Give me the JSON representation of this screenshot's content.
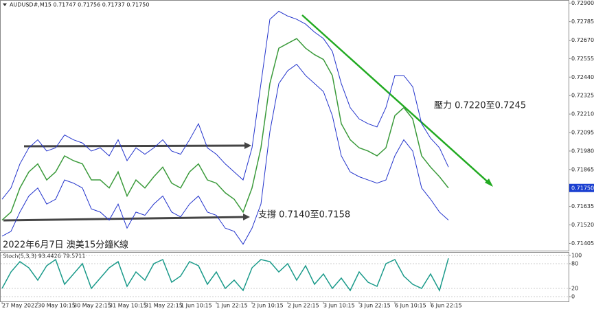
{
  "chart_data": [
    {
      "type": "line",
      "title": "AUDUSD#,M15  0.71747 0.71756 0.71737 0.71750",
      "annotations": [
        "壓力 0.7220至0.7245",
        "支撐 0.7140至0.7158",
        "2022年6月7日 澳美15分鐘K線"
      ],
      "current_price": {
        "value": 0.7175,
        "label": "0.71750"
      },
      "ylim": [
        0.7136,
        0.7292
      ],
      "yticks": [
        {
          "value": 0.729,
          "label": "0.72900"
        },
        {
          "value": 0.72785,
          "label": "0.72785"
        },
        {
          "value": 0.7267,
          "label": "0.72670"
        },
        {
          "value": 0.72555,
          "label": "0.72555"
        },
        {
          "value": 0.7244,
          "label": "0.72440"
        },
        {
          "value": 0.72325,
          "label": "0.72325"
        },
        {
          "value": 0.7221,
          "label": "0.72210"
        },
        {
          "value": 0.72095,
          "label": "0.72095"
        },
        {
          "value": 0.7198,
          "label": "0.71980"
        },
        {
          "value": 0.71865,
          "label": "0.71865"
        },
        {
          "value": 0.71635,
          "label": "0.71635"
        },
        {
          "value": 0.7152,
          "label": "0.71520"
        },
        {
          "value": 0.71405,
          "label": "0.71405"
        }
      ],
      "series": [
        {
          "color": "#3a9a3a",
          "values": [
            0.7155,
            0.716,
            0.7175,
            0.7185,
            0.719,
            0.718,
            0.7185,
            0.7195,
            0.7192,
            0.719,
            0.718,
            0.718,
            0.7175,
            0.7185,
            0.717,
            0.718,
            0.7175,
            0.7182,
            0.7188,
            0.7178,
            0.7175,
            0.7185,
            0.719,
            0.718,
            0.7178,
            0.7172,
            0.7168,
            0.716,
            0.7175,
            0.72,
            0.724,
            0.7262,
            0.7265,
            0.7268,
            0.7262,
            0.7258,
            0.7255,
            0.7245,
            0.7215,
            0.7205,
            0.72,
            0.7198,
            0.7195,
            0.72,
            0.722,
            0.7225,
            0.7218,
            0.7195,
            0.7188,
            0.7182,
            0.7175
          ]
        },
        {
          "color": "#2233cc",
          "values": [
            0.7168,
            0.7175,
            0.719,
            0.72,
            0.7205,
            0.7198,
            0.72,
            0.7208,
            0.7205,
            0.7203,
            0.7198,
            0.72,
            0.7195,
            0.7205,
            0.7192,
            0.72,
            0.7196,
            0.72,
            0.7205,
            0.7198,
            0.7196,
            0.7205,
            0.7215,
            0.72,
            0.7196,
            0.719,
            0.7185,
            0.718,
            0.72,
            0.724,
            0.728,
            0.7285,
            0.7282,
            0.728,
            0.7277,
            0.7272,
            0.7268,
            0.726,
            0.724,
            0.7225,
            0.7218,
            0.7215,
            0.7213,
            0.7225,
            0.7245,
            0.7245,
            0.7238,
            0.7215,
            0.7206,
            0.72,
            0.7188
          ]
        },
        {
          "color": "#2233cc",
          "values": [
            0.7145,
            0.7148,
            0.716,
            0.717,
            0.7175,
            0.7165,
            0.7168,
            0.718,
            0.7178,
            0.7175,
            0.7162,
            0.716,
            0.7155,
            0.7165,
            0.715,
            0.716,
            0.7158,
            0.7165,
            0.717,
            0.716,
            0.7157,
            0.7165,
            0.717,
            0.716,
            0.7158,
            0.715,
            0.7148,
            0.714,
            0.715,
            0.7165,
            0.721,
            0.724,
            0.7248,
            0.7252,
            0.7245,
            0.724,
            0.7235,
            0.722,
            0.7195,
            0.7185,
            0.7182,
            0.718,
            0.7178,
            0.718,
            0.7195,
            0.7205,
            0.7198,
            0.7175,
            0.7168,
            0.716,
            0.7155
          ]
        }
      ]
    },
    {
      "type": "line",
      "title": "Stoch(5,3,3) 93.4426 79.5711",
      "categories": [
        "27 May 2022",
        null,
        null,
        null,
        "30 May 10:15",
        null,
        null,
        null,
        "30 May 22:15",
        null,
        null,
        null,
        "31 May 10:15",
        null,
        null,
        null,
        "31 May 22:15",
        null,
        null,
        null,
        "1 Jun 10:15",
        null,
        null,
        null,
        "1 Jun 22:15",
        null,
        null,
        null,
        "2 Jun 10:15",
        null,
        null,
        null,
        "2 Jun 22:15",
        null,
        null,
        null,
        "3 Jun 10:15",
        null,
        null,
        null,
        "3 Jun 22:15",
        null,
        null,
        null,
        "6 Jun 10:15",
        null,
        null,
        null,
        "6 Jun 22:15",
        null,
        null
      ],
      "ylim": [
        0,
        100
      ],
      "yticks": [
        100,
        80,
        20,
        0
      ],
      "series": [
        {
          "color": "#1a9a8a",
          "values": [
            20,
            60,
            85,
            70,
            40,
            75,
            90,
            30,
            55,
            80,
            20,
            45,
            70,
            85,
            25,
            60,
            40,
            80,
            90,
            35,
            50,
            85,
            75,
            30,
            60,
            20,
            40,
            15,
            70,
            90,
            85,
            60,
            80,
            40,
            75,
            30,
            55,
            20,
            45,
            15,
            60,
            35,
            25,
            80,
            90,
            50,
            30,
            20,
            55,
            15,
            93
          ]
        }
      ]
    }
  ]
}
